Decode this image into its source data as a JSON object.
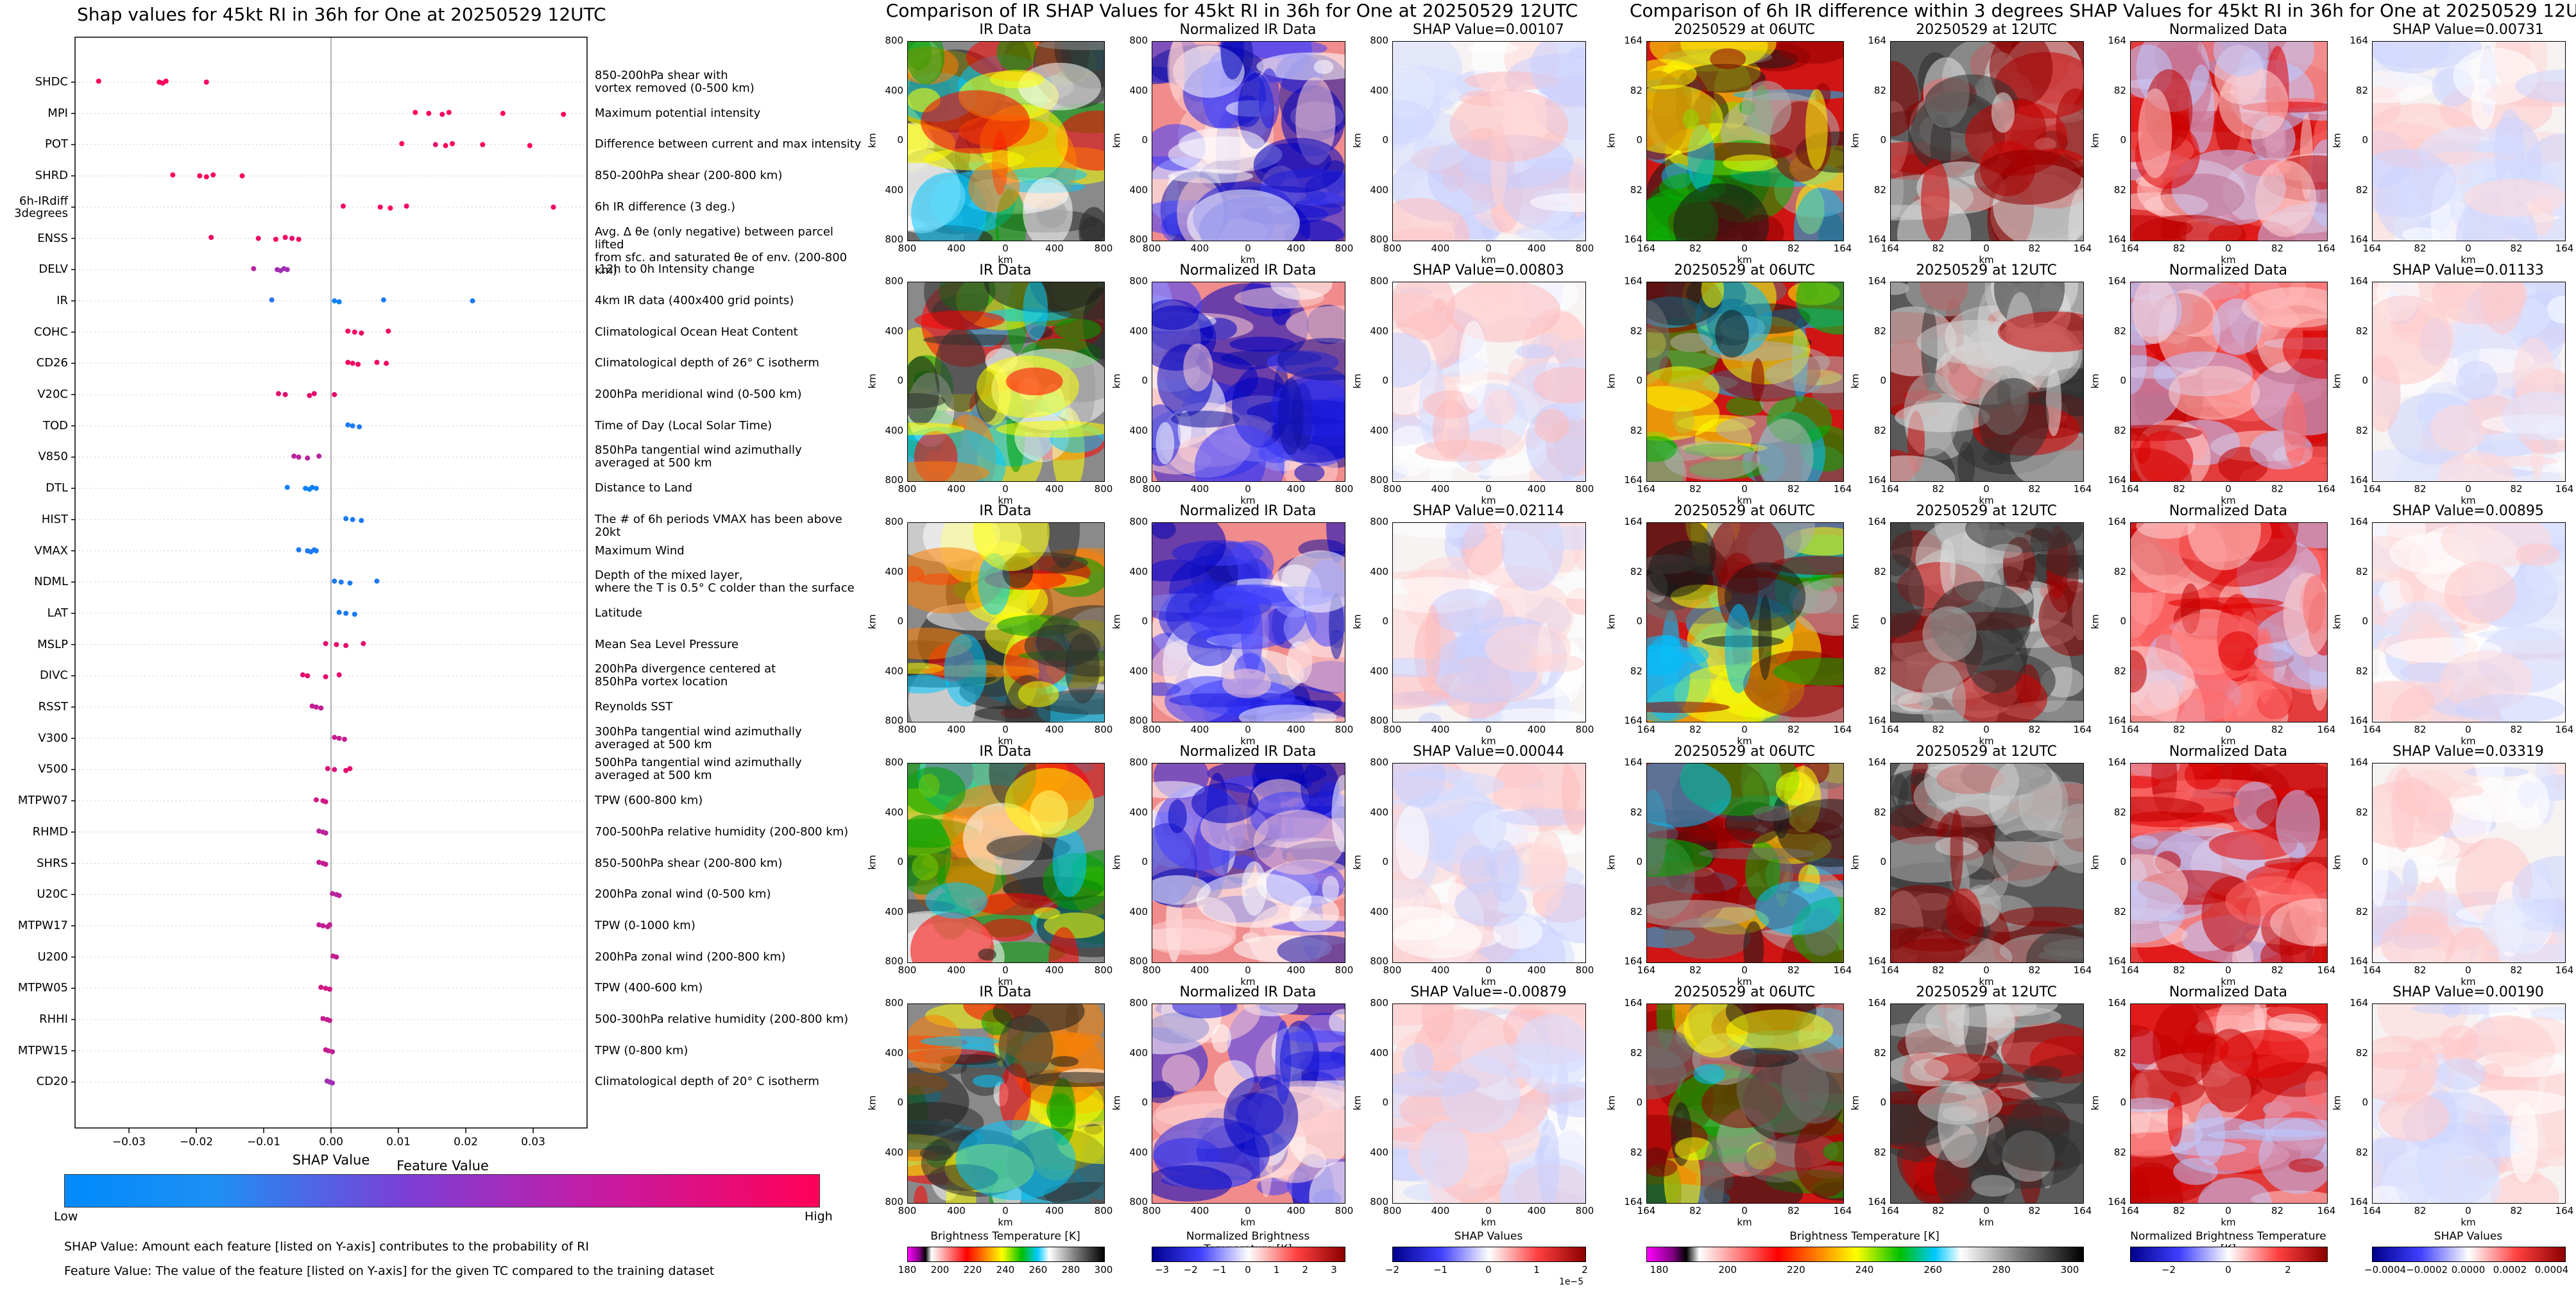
{
  "beeswarm": {
    "title": "Shap values for 45kt RI in 36h for One at 20250529 12UTC",
    "xlabel": "SHAP Value",
    "x_ticks": [
      "−0.03",
      "−0.02",
      "−0.01",
      "0.00",
      "0.01",
      "0.02",
      "0.03"
    ],
    "colorbar_title": "Feature Value",
    "colorbar_low": "Low",
    "colorbar_high": "High",
    "colors": {
      "low": "#1e88e5",
      "high": "#ff0d57"
    },
    "note1": "SHAP Value: Amount each feature [listed on Y-axis] contributes to the probability of RI",
    "note2": "Feature Value: The value of the feature [listed on Y-axis] for the given TC compared to the training dataset",
    "features": [
      {
        "name": "SHDC",
        "desc": "850-200hPa shear with\nvortex removed (0-500 km)"
      },
      {
        "name": "MPI",
        "desc": "Maximum potential intensity"
      },
      {
        "name": "POT",
        "desc": "Difference between current and max intensity"
      },
      {
        "name": "SHRD",
        "desc": "850-200hPa shear (200-800 km)"
      },
      {
        "name": "6h-IRdiff\n3degrees",
        "desc": "6h IR difference (3 deg.)"
      },
      {
        "name": "ENSS",
        "desc": "Avg. Δ θe (only negative) between parcel lifted\nfrom sfc. and saturated θe of env. (200-800 km)"
      },
      {
        "name": "DELV",
        "desc": "-12h to 0h Intensity change"
      },
      {
        "name": "IR",
        "desc": "4km IR data (400x400 grid points)"
      },
      {
        "name": "COHC",
        "desc": "Climatological Ocean Heat Content"
      },
      {
        "name": "CD26",
        "desc": "Climatological depth of 26° C isotherm"
      },
      {
        "name": "V20C",
        "desc": "200hPa meridional wind (0-500 km)"
      },
      {
        "name": "TOD",
        "desc": "Time of Day (Local Solar Time)"
      },
      {
        "name": "V850",
        "desc": "850hPa tangential wind azimuthally\naveraged at 500 km"
      },
      {
        "name": "DTL",
        "desc": "Distance to Land"
      },
      {
        "name": "HIST",
        "desc": "The # of 6h periods VMAX has been above 20kt"
      },
      {
        "name": "VMAX",
        "desc": "Maximum Wind"
      },
      {
        "name": "NDML",
        "desc": "Depth of the mixed layer,\nwhere the T is 0.5° C colder than the surface"
      },
      {
        "name": "LAT",
        "desc": "Latitude"
      },
      {
        "name": "MSLP",
        "desc": "Mean Sea Level Pressure"
      },
      {
        "name": "DIVC",
        "desc": "200hPa divergence centered at\n850hPa vortex location"
      },
      {
        "name": "RSST",
        "desc": "Reynolds SST"
      },
      {
        "name": "V300",
        "desc": "300hPa tangential wind azimuthally\naveraged at 500 km"
      },
      {
        "name": "V500",
        "desc": "500hPa tangential wind azimuthally\naveraged at 500 km"
      },
      {
        "name": "MTPW07",
        "desc": "TPW (600-800 km)"
      },
      {
        "name": "RHMD",
        "desc": "700-500hPa relative humidity (200-800 km)"
      },
      {
        "name": "SHRS",
        "desc": "850-500hPa shear (200-800 km)"
      },
      {
        "name": "U20C",
        "desc": "200hPa zonal wind (0-500 km)"
      },
      {
        "name": "MTPW17",
        "desc": "TPW (0-1000 km)"
      },
      {
        "name": "U200",
        "desc": "200hPa zonal wind (200-800 km)"
      },
      {
        "name": "MTPW05",
        "desc": "TPW (400-600 km)"
      },
      {
        "name": "RHHI",
        "desc": "500-300hPa relative humidity (200-800 km)"
      },
      {
        "name": "MTPW15",
        "desc": "TPW (0-800 km)"
      },
      {
        "name": "CD20",
        "desc": "Climatological depth of 20° C isotherm"
      }
    ]
  },
  "ir_section": {
    "title": "Comparison of IR SHAP Values for 45kt RI in 36h for One at 20250529 12UTC",
    "col1_title": "IR Data",
    "col2_title": "Normalized IR Data",
    "shap_titles": [
      "SHAP Value=0.00107",
      "SHAP Value=0.00803",
      "SHAP Value=0.02114",
      "SHAP Value=0.00044",
      "SHAP Value=-0.00879"
    ],
    "y_ticks": [
      "800",
      "400",
      "0",
      "400",
      "800"
    ],
    "x_ticks": [
      "800",
      "400",
      "0",
      "400",
      "800"
    ],
    "axis_label": "km",
    "cbar1_label": "Brightness Temperature [K]",
    "cbar1_ticks": [
      "180",
      "200",
      "220",
      "240",
      "260",
      "280",
      "300"
    ],
    "cbar2_label": "Normalized Brightness Temperature [K]",
    "cbar2_ticks": [
      "−3",
      "−2",
      "−1",
      "0",
      "1",
      "2",
      "3"
    ],
    "cbar3_label": "SHAP Values",
    "cbar3_ticks": [
      "−2",
      "−1",
      "0",
      "1",
      "2"
    ],
    "cbar3_exp": "1e−5"
  },
  "diff_section": {
    "title": "Comparison of 6h IR difference within 3 degrees SHAP Values for 45kt RI in 36h for One at 20250529 12UTC",
    "col1_title": "20250529 at 06UTC",
    "col2_title": "20250529 at 12UTC",
    "col3_title": "Normalized Data",
    "shap_titles": [
      "SHAP Value=0.00731",
      "SHAP Value=0.01133",
      "SHAP Value=0.00895",
      "SHAP Value=0.03319",
      "SHAP Value=0.00190"
    ],
    "y_ticks": [
      "164",
      "82",
      "0",
      "82",
      "164"
    ],
    "x_ticks": [
      "164",
      "82",
      "0",
      "82",
      "164"
    ],
    "axis_label": "km",
    "cbar1_label": "Brightness Temperature [K]",
    "cbar1_ticks": [
      "180",
      "200",
      "220",
      "240",
      "260",
      "280",
      "300"
    ],
    "cbar2_label": "Normalized Brightness Temperature [K]",
    "cbar2_ticks": [
      "−2",
      "0",
      "2"
    ],
    "cbar3_label": "SHAP Values",
    "cbar3_ticks": [
      "−0.0004",
      "−0.0002",
      "0.0000",
      "0.0002",
      "0.0004"
    ]
  },
  "chart_data": [
    {
      "type": "scatter",
      "title": "Shap values for 45kt RI in 36h for One at 20250529 12UTC",
      "xlabel": "SHAP Value",
      "xlim": [
        -0.038,
        0.038
      ],
      "series": [
        {
          "name": "SHDC",
          "points": [
            [
              -0.0345,
              1.0
            ],
            [
              -0.0255,
              1.0
            ],
            [
              -0.025,
              0.95
            ],
            [
              -0.0245,
              1.0
            ],
            [
              -0.0185,
              0.95
            ]
          ]
        },
        {
          "name": "MPI",
          "points": [
            [
              0.0125,
              1.0
            ],
            [
              0.0145,
              1.0
            ],
            [
              0.0165,
              0.95
            ],
            [
              0.0175,
              1.0
            ],
            [
              0.0255,
              1.0
            ],
            [
              0.0345,
              1.0
            ]
          ]
        },
        {
          "name": "POT",
          "points": [
            [
              0.0105,
              1.0
            ],
            [
              0.0155,
              0.9
            ],
            [
              0.017,
              1.0
            ],
            [
              0.018,
              1.0
            ],
            [
              0.0225,
              1.0
            ],
            [
              0.0295,
              1.0
            ]
          ]
        },
        {
          "name": "SHRD",
          "points": [
            [
              -0.0235,
              1.0
            ],
            [
              -0.0195,
              0.95
            ],
            [
              -0.0185,
              1.0
            ],
            [
              -0.0175,
              0.95
            ],
            [
              -0.0132,
              1.0
            ]
          ]
        },
        {
          "name": "6h-IRdiff 3degrees",
          "points": [
            [
              0.0018,
              0.95
            ],
            [
              0.0073,
              0.95
            ],
            [
              0.0088,
              1.0
            ],
            [
              0.0112,
              0.95
            ],
            [
              0.033,
              0.95
            ]
          ]
        },
        {
          "name": "ENSS",
          "points": [
            [
              -0.0178,
              0.95
            ],
            [
              -0.0108,
              0.95
            ],
            [
              -0.0082,
              0.95
            ],
            [
              -0.0068,
              0.95
            ],
            [
              -0.0058,
              0.9
            ],
            [
              -0.0048,
              0.95
            ]
          ]
        },
        {
          "name": "DELV",
          "points": [
            [
              -0.0115,
              0.7
            ],
            [
              -0.008,
              0.6
            ],
            [
              -0.0075,
              0.6
            ],
            [
              -0.007,
              0.6
            ],
            [
              -0.0065,
              0.6
            ]
          ]
        },
        {
          "name": "IR",
          "points": [
            [
              -0.0088,
              0.15
            ],
            [
              0.0005,
              0.05
            ],
            [
              0.0012,
              0.05
            ],
            [
              0.0078,
              0.1
            ],
            [
              0.021,
              0.1
            ]
          ]
        },
        {
          "name": "COHC",
          "points": [
            [
              0.0025,
              0.95
            ],
            [
              0.0035,
              0.95
            ],
            [
              0.0045,
              0.95
            ],
            [
              0.0085,
              0.95
            ]
          ]
        },
        {
          "name": "CD26",
          "points": [
            [
              0.0025,
              0.95
            ],
            [
              0.0032,
              0.95
            ],
            [
              0.004,
              0.95
            ],
            [
              0.0068,
              0.95
            ],
            [
              0.0082,
              0.95
            ]
          ]
        },
        {
          "name": "V20C",
          "points": [
            [
              -0.0078,
              0.9
            ],
            [
              -0.0068,
              0.9
            ],
            [
              -0.0032,
              0.9
            ],
            [
              -0.0025,
              0.9
            ],
            [
              0.0005,
              0.9
            ]
          ]
        },
        {
          "name": "TOD",
          "points": [
            [
              0.0025,
              0.1
            ],
            [
              0.0032,
              0.1
            ],
            [
              0.0042,
              0.1
            ]
          ]
        },
        {
          "name": "V850",
          "points": [
            [
              -0.0055,
              0.7
            ],
            [
              -0.0048,
              0.7
            ],
            [
              -0.0035,
              0.7
            ],
            [
              -0.0018,
              0.7
            ]
          ]
        },
        {
          "name": "DTL",
          "points": [
            [
              -0.0065,
              0.05
            ],
            [
              -0.0038,
              0.05
            ],
            [
              -0.0032,
              0.05
            ],
            [
              -0.0028,
              0.05
            ],
            [
              -0.0022,
              0.05
            ]
          ]
        },
        {
          "name": "HIST",
          "points": [
            [
              0.0022,
              0.1
            ],
            [
              0.0032,
              0.1
            ],
            [
              0.0045,
              0.1
            ]
          ]
        },
        {
          "name": "VMAX",
          "points": [
            [
              -0.0048,
              0.1
            ],
            [
              -0.0035,
              0.1
            ],
            [
              -0.003,
              0.1
            ],
            [
              -0.0025,
              0.1
            ],
            [
              -0.0022,
              0.1
            ]
          ]
        },
        {
          "name": "NDML",
          "points": [
            [
              0.0005,
              0.1
            ],
            [
              0.0015,
              0.1
            ],
            [
              0.0028,
              0.1
            ],
            [
              0.0068,
              0.1
            ]
          ]
        },
        {
          "name": "LAT",
          "points": [
            [
              0.0012,
              0.1
            ],
            [
              0.0022,
              0.1
            ],
            [
              0.0035,
              0.1
            ]
          ]
        },
        {
          "name": "MSLP",
          "points": [
            [
              -0.0008,
              0.9
            ],
            [
              0.0008,
              0.9
            ],
            [
              0.0022,
              0.9
            ],
            [
              0.0048,
              0.9
            ]
          ]
        },
        {
          "name": "DIVC",
          "points": [
            [
              -0.0042,
              0.9
            ],
            [
              -0.0035,
              0.9
            ],
            [
              -0.0008,
              0.9
            ],
            [
              0.0012,
              0.9
            ]
          ]
        },
        {
          "name": "RSST",
          "points": [
            [
              -0.0028,
              0.75
            ],
            [
              -0.0022,
              0.75
            ],
            [
              -0.0015,
              0.75
            ]
          ]
        },
        {
          "name": "V300",
          "points": [
            [
              0.0005,
              0.75
            ],
            [
              0.0012,
              0.75
            ],
            [
              0.002,
              0.75
            ]
          ]
        },
        {
          "name": "V500",
          "points": [
            [
              -0.0005,
              0.85
            ],
            [
              0.0005,
              0.85
            ],
            [
              0.0022,
              0.9
            ],
            [
              0.0028,
              0.9
            ]
          ]
        },
        {
          "name": "MTPW07",
          "points": [
            [
              -0.0022,
              0.8
            ],
            [
              -0.0012,
              0.8
            ],
            [
              -0.0008,
              0.8
            ]
          ]
        },
        {
          "name": "RHMD",
          "points": [
            [
              -0.0018,
              0.7
            ],
            [
              -0.0012,
              0.7
            ],
            [
              -0.0008,
              0.7
            ]
          ]
        },
        {
          "name": "SHRS",
          "points": [
            [
              -0.0018,
              0.75
            ],
            [
              -0.0012,
              0.75
            ],
            [
              -0.0008,
              0.75
            ]
          ]
        },
        {
          "name": "U20C",
          "points": [
            [
              0.0002,
              0.7
            ],
            [
              0.0008,
              0.7
            ],
            [
              0.0012,
              0.7
            ]
          ]
        },
        {
          "name": "MTPW17",
          "points": [
            [
              -0.0018,
              0.75
            ],
            [
              -0.0012,
              0.75
            ],
            [
              -0.0005,
              0.75
            ],
            [
              -0.0002,
              0.75
            ]
          ]
        },
        {
          "name": "U200",
          "points": [
            [
              0.0003,
              0.75
            ],
            [
              0.0008,
              0.75
            ]
          ]
        },
        {
          "name": "MTPW05",
          "points": [
            [
              -0.0015,
              0.8
            ],
            [
              -0.0008,
              0.8
            ],
            [
              -0.0002,
              0.8
            ]
          ]
        },
        {
          "name": "RHHI",
          "points": [
            [
              -0.0012,
              0.75
            ],
            [
              -0.0006,
              0.75
            ],
            [
              -0.0002,
              0.75
            ]
          ]
        },
        {
          "name": "MTPW15",
          "points": [
            [
              -0.0008,
              0.75
            ],
            [
              -0.0004,
              0.75
            ],
            [
              0.0002,
              0.75
            ]
          ]
        },
        {
          "name": "CD20",
          "points": [
            [
              -0.0006,
              0.6
            ],
            [
              -0.0002,
              0.6
            ],
            [
              0.0002,
              0.6
            ]
          ]
        }
      ]
    },
    {
      "type": "heatmap",
      "title": "Comparison of IR SHAP Values for 45kt RI in 36h for One at 20250529 12UTC",
      "columns": [
        "IR Data",
        "Normalized IR Data",
        "SHAP Value"
      ],
      "shap_values": [
        0.00107,
        0.00803,
        0.02114,
        0.00044,
        -0.00879
      ],
      "xlim": [
        -800,
        800
      ],
      "ylim": [
        -800,
        800
      ],
      "xlabel": "km",
      "ylabel": "km"
    },
    {
      "type": "heatmap",
      "title": "Comparison of 6h IR difference within 3 degrees SHAP Values for 45kt RI in 36h for One at 20250529 12UTC",
      "columns": [
        "20250529 at 06UTC",
        "20250529 at 12UTC",
        "Normalized Data",
        "SHAP Value"
      ],
      "shap_values": [
        0.00731,
        0.01133,
        0.00895,
        0.03319,
        0.0019
      ],
      "xlim": [
        -164,
        164
      ],
      "ylim": [
        -164,
        164
      ],
      "xlabel": "km",
      "ylabel": "km"
    }
  ]
}
